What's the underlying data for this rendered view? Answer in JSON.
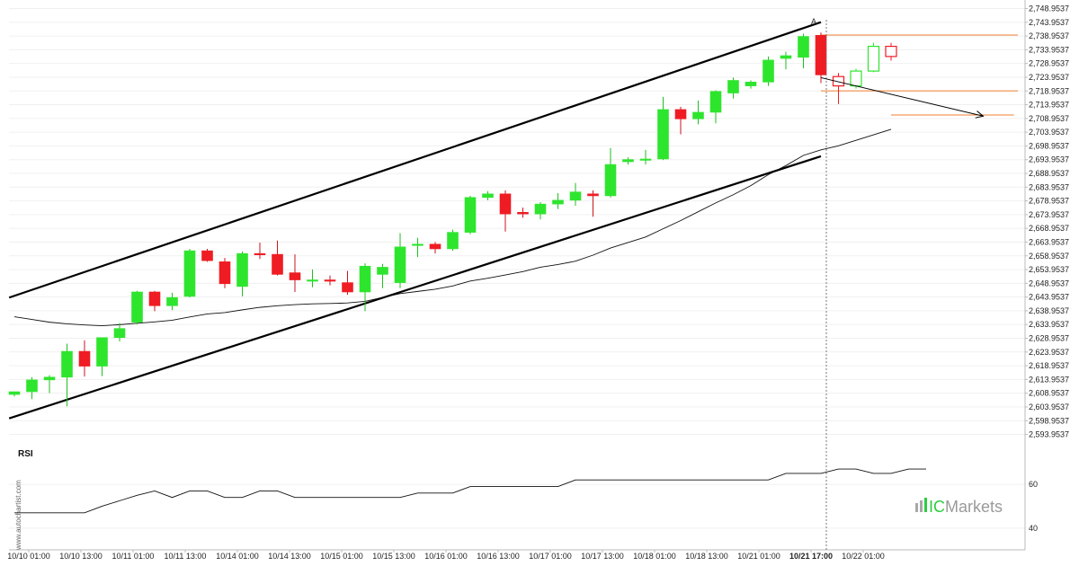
{
  "chart_data": {
    "type": "candlestick",
    "series_name": "",
    "price_axis_labels": [
      "2,748.9537",
      "2,743.9537",
      "2,738.9537",
      "2,733.9537",
      "2,728.9537",
      "2,723.9537",
      "2,718.9537",
      "2,713.9537",
      "2,708.9537",
      "2,703.9537",
      "2,698.9537",
      "2,693.9537",
      "2,688.9537",
      "2,683.9537",
      "2,678.9537",
      "2,673.9537",
      "2,668.9537",
      "2,663.9537",
      "2,658.9537",
      "2,653.9537",
      "2,648.9537",
      "2,643.9537",
      "2,638.9537",
      "2,633.9537",
      "2,628.9537",
      "2,623.9537",
      "2,618.9537",
      "2,613.9537",
      "2,608.9537",
      "2,603.9537",
      "2,598.9537",
      "2,593.9537"
    ],
    "price_ylim": [
      2592.5,
      2750.1
    ],
    "time_axis_labels": [
      "10/10 01:00",
      "10/10 13:00",
      "10/11 01:00",
      "10/11 13:00",
      "10/14 01:00",
      "10/14 13:00",
      "10/15 01:00",
      "10/15 13:00",
      "10/16 01:00",
      "10/16 13:00",
      "10/17 01:00",
      "10/17 13:00",
      "10/18 01:00",
      "10/18 13:00",
      "10/21 01:00",
      "10/21 17:00",
      "10/22 01:00"
    ],
    "highlighted_time_label": "10/21 17:00",
    "candles": [
      {
        "open": 2608.5,
        "high": 2609.5,
        "low": 2607.8,
        "close": 2609.5
      },
      {
        "open": 2609.5,
        "high": 2614.8,
        "low": 2606.8,
        "close": 2613.8
      },
      {
        "open": 2613.8,
        "high": 2615.5,
        "low": 2609.0,
        "close": 2614.8
      },
      {
        "open": 2614.8,
        "high": 2627.0,
        "low": 2604.2,
        "close": 2624.2
      },
      {
        "open": 2624.2,
        "high": 2628.2,
        "low": 2615.0,
        "close": 2618.8
      },
      {
        "open": 2618.8,
        "high": 2629.2,
        "low": 2615.2,
        "close": 2629.2
      },
      {
        "open": 2629.2,
        "high": 2634.5,
        "low": 2627.8,
        "close": 2632.5
      },
      {
        "open": 2634.8,
        "high": 2646.2,
        "low": 2634.0,
        "close": 2645.8
      },
      {
        "open": 2645.8,
        "high": 2646.2,
        "low": 2638.8,
        "close": 2640.8
      },
      {
        "open": 2640.8,
        "high": 2645.5,
        "low": 2639.2,
        "close": 2643.8
      },
      {
        "open": 2644.2,
        "high": 2661.5,
        "low": 2643.8,
        "close": 2660.8
      },
      {
        "open": 2660.8,
        "high": 2661.5,
        "low": 2656.8,
        "close": 2657.2
      },
      {
        "open": 2656.8,
        "high": 2658.2,
        "low": 2647.2,
        "close": 2648.8
      },
      {
        "open": 2647.8,
        "high": 2660.5,
        "low": 2644.2,
        "close": 2659.8
      },
      {
        "open": 2659.8,
        "high": 2663.8,
        "low": 2657.8,
        "close": 2659.5
      },
      {
        "open": 2659.5,
        "high": 2664.5,
        "low": 2651.8,
        "close": 2652.2
      },
      {
        "open": 2652.8,
        "high": 2659.5,
        "low": 2645.8,
        "close": 2650.2
      },
      {
        "open": 2650.2,
        "high": 2654.0,
        "low": 2647.5,
        "close": 2650.2
      },
      {
        "open": 2650.2,
        "high": 2651.8,
        "low": 2648.2,
        "close": 2650.0
      },
      {
        "open": 2649.2,
        "high": 2653.5,
        "low": 2644.8,
        "close": 2645.8
      },
      {
        "open": 2645.8,
        "high": 2656.2,
        "low": 2638.8,
        "close": 2655.2
      },
      {
        "open": 2652.2,
        "high": 2656.0,
        "low": 2647.2,
        "close": 2654.8
      },
      {
        "open": 2649.2,
        "high": 2667.2,
        "low": 2647.2,
        "close": 2662.2
      },
      {
        "open": 2662.8,
        "high": 2665.5,
        "low": 2658.5,
        "close": 2663.2
      },
      {
        "open": 2663.2,
        "high": 2664.0,
        "low": 2659.8,
        "close": 2661.5
      },
      {
        "open": 2661.5,
        "high": 2668.5,
        "low": 2660.8,
        "close": 2667.5
      },
      {
        "open": 2667.5,
        "high": 2680.8,
        "low": 2666.8,
        "close": 2680.2
      },
      {
        "open": 2680.2,
        "high": 2682.5,
        "low": 2679.2,
        "close": 2681.5
      },
      {
        "open": 2681.5,
        "high": 2682.8,
        "low": 2667.8,
        "close": 2674.2
      },
      {
        "open": 2674.8,
        "high": 2676.5,
        "low": 2672.8,
        "close": 2674.2
      },
      {
        "open": 2674.2,
        "high": 2678.5,
        "low": 2672.2,
        "close": 2677.8
      },
      {
        "open": 2677.8,
        "high": 2681.8,
        "low": 2676.0,
        "close": 2679.2
      },
      {
        "open": 2679.2,
        "high": 2685.5,
        "low": 2677.2,
        "close": 2682.2
      },
      {
        "open": 2681.5,
        "high": 2682.8,
        "low": 2673.2,
        "close": 2680.8
      },
      {
        "open": 2680.8,
        "high": 2698.2,
        "low": 2680.2,
        "close": 2692.2
      },
      {
        "open": 2693.2,
        "high": 2694.8,
        "low": 2692.2,
        "close": 2694.0
      },
      {
        "open": 2693.8,
        "high": 2697.5,
        "low": 2692.2,
        "close": 2694.2
      },
      {
        "open": 2694.2,
        "high": 2716.8,
        "low": 2693.8,
        "close": 2712.2
      },
      {
        "open": 2712.2,
        "high": 2713.2,
        "low": 2703.2,
        "close": 2708.8
      },
      {
        "open": 2708.8,
        "high": 2715.5,
        "low": 2706.8,
        "close": 2711.2
      },
      {
        "open": 2711.2,
        "high": 2719.2,
        "low": 2707.2,
        "close": 2718.8
      },
      {
        "open": 2718.2,
        "high": 2723.8,
        "low": 2716.2,
        "close": 2722.8
      },
      {
        "open": 2720.8,
        "high": 2722.8,
        "low": 2719.8,
        "close": 2722.2
      },
      {
        "open": 2722.2,
        "high": 2731.5,
        "low": 2720.8,
        "close": 2730.2
      },
      {
        "open": 2730.8,
        "high": 2733.2,
        "low": 2726.8,
        "close": 2731.8
      },
      {
        "open": 2731.2,
        "high": 2739.8,
        "low": 2727.2,
        "close": 2738.8
      },
      {
        "open": 2739.2,
        "high": 2740.2,
        "low": 2721.8,
        "close": 2724.8
      },
      {
        "open": 2724.2,
        "high": 2725.5,
        "low": 2714.2,
        "close": 2720.8
      },
      {
        "open": 2720.8,
        "high": 2727.0,
        "low": 2719.8,
        "close": 2726.2
      },
      {
        "open": 2726.2,
        "high": 2736.5,
        "low": 2725.8,
        "close": 2735.2
      },
      {
        "open": 2735.2,
        "high": 2736.5,
        "low": 2730.0,
        "close": 2731.5
      }
    ],
    "moving_average": [
      2636.8,
      2635.8,
      2634.8,
      2634.2,
      2633.8,
      2633.5,
      2633.9,
      2634.4,
      2634.9,
      2635.5,
      2636.7,
      2637.8,
      2638.3,
      2639.3,
      2640.2,
      2640.8,
      2641.2,
      2641.5,
      2641.6,
      2641.8,
      2642.4,
      2643.8,
      2645.2,
      2646.0,
      2646.8,
      2648.0,
      2649.8,
      2650.8,
      2652.0,
      2653.2,
      2654.8,
      2655.8,
      2657.0,
      2659.2,
      2661.8,
      2663.8,
      2665.8,
      2668.8,
      2671.8,
      2675.0,
      2678.2,
      2681.2,
      2684.5,
      2688.5,
      2691.8,
      2695.5,
      2697.5,
      2699.0,
      2701.0,
      2703.0,
      2705.0
    ],
    "channel_upper": {
      "from_index": 0,
      "from_price": 2644.4,
      "to_index": 46,
      "to_price": 2744.0
    },
    "channel_lower": {
      "from_index": 0,
      "from_price": 2600.4,
      "to_index": 46,
      "to_price": 2695.2
    },
    "projection_arrow": {
      "from_index": 46,
      "from_price": 2723.8,
      "to_index": 55,
      "to_price": 2709.8
    },
    "horizontal_levels": [
      {
        "price": 2739.3,
        "from_index": 46,
        "to_index": 62
      },
      {
        "price": 2719.0,
        "from_index": 46,
        "to_index": 62
      },
      {
        "price": 2710.2,
        "from_index": 50,
        "to_index": 57
      }
    ],
    "pattern_marker": {
      "text": "A",
      "index": 46,
      "price": 2743.3
    },
    "projected_candle_count": 4,
    "rsi": {
      "label": "RSI",
      "tick_labels": [
        "60",
        "40"
      ],
      "ylim": [
        35,
        74
      ],
      "values": [
        47,
        47,
        47,
        47,
        47,
        50,
        52.5,
        55,
        57,
        54,
        57,
        57,
        54,
        54,
        57,
        57,
        54,
        54,
        54,
        54,
        54,
        54,
        54,
        56,
        56,
        56,
        59,
        59,
        59,
        59,
        59,
        59,
        62,
        62,
        62,
        62,
        62,
        62,
        62,
        62,
        62,
        62,
        62,
        62,
        65,
        65,
        65,
        67,
        67,
        65,
        65,
        67,
        67
      ]
    },
    "colors": {
      "up": "#2ee52e",
      "down": "#ef1c23",
      "level": "#f08030",
      "line": "#000000",
      "marker": "#f7a86a"
    }
  },
  "watermark": "www.autochartist.com",
  "brand": {
    "prefix": "IC",
    "name": "Markets"
  }
}
